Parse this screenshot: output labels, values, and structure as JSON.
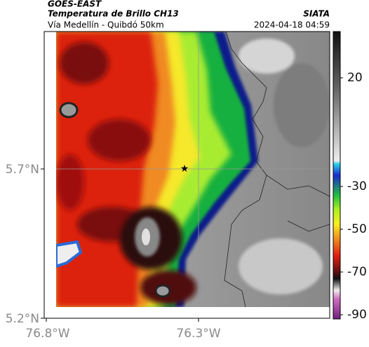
{
  "header": {
    "title": "GOES-EAST",
    "subtitle": "Temperatura de Brillo CH13",
    "route": "Vía Medellín - Quibdó 50km",
    "source": "SIATA",
    "timestamp": "2024-04-18 04:59"
  },
  "axes": {
    "y_labels": [
      "5.7°N",
      "5.2°N"
    ],
    "x_labels": [
      "76.8°W",
      "76.3°W"
    ]
  },
  "colorbar": {
    "labels": [
      "20",
      "-30",
      "-50",
      "-70",
      "-90"
    ]
  }
}
